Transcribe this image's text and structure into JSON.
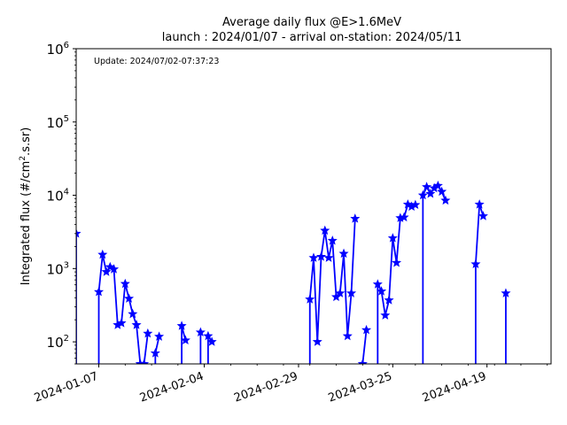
{
  "chart_data": {
    "type": "line",
    "title": "Average daily flux @E>1.6MeV",
    "subtitle": "launch : 2024/01/07 - arrival on-station: 2024/05/11",
    "annotation": "Update: 2024/07/02-07:37:23",
    "xlabel": "",
    "ylabel_main": "Integrated flux (#/cm",
    "ylabel_sup": "2",
    "ylabel_tail": ".s.sr)",
    "x_tick_labels": [
      "2024-01-07",
      "2024-02-04",
      "2024-02-29",
      "2024-03-25",
      "2024-04-19"
    ],
    "y_tick_exponents": [
      "2",
      "3",
      "4",
      "5",
      "6"
    ],
    "y_scale": "log",
    "ylim": [
      50,
      1000000
    ],
    "xlim_days": [
      0,
      126
    ],
    "grid": false,
    "legend": "none",
    "colors": {
      "series": "#0000ff",
      "axes": "#000000",
      "background": "#ffffff"
    },
    "marker": "star",
    "series": [
      {
        "points": [
          [
            "2024-01-01",
            3000
          ],
          [
            "2024-01-07",
            480
          ],
          [
            "2024-01-08",
            1550
          ],
          [
            "2024-01-09",
            900
          ],
          [
            "2024-01-10",
            1050
          ],
          [
            "2024-01-11",
            980
          ],
          [
            "2024-01-12",
            170
          ],
          [
            "2024-01-13",
            180
          ],
          [
            "2024-01-14",
            620
          ],
          [
            "2024-01-15",
            390
          ],
          [
            "2024-01-16",
            240
          ],
          [
            "2024-01-17",
            170
          ],
          [
            "2024-01-18",
            50
          ],
          [
            "2024-01-19",
            50
          ],
          [
            "2024-01-20",
            130
          ],
          [
            "2024-01-22",
            70
          ],
          [
            "2024-01-23",
            118
          ],
          [
            "2024-01-29",
            165
          ],
          [
            "2024-01-30",
            105
          ],
          [
            "2024-02-03",
            135
          ],
          [
            "2024-02-05",
            120
          ],
          [
            "2024-02-06",
            100
          ],
          [
            "2024-03-03",
            380
          ],
          [
            "2024-03-04",
            1400
          ],
          [
            "2024-03-05",
            100
          ],
          [
            "2024-03-06",
            1450
          ],
          [
            "2024-03-07",
            3300
          ],
          [
            "2024-03-08",
            1400
          ],
          [
            "2024-03-09",
            2400
          ],
          [
            "2024-03-10",
            410
          ],
          [
            "2024-03-11",
            460
          ],
          [
            "2024-03-12",
            1600
          ],
          [
            "2024-03-13",
            120
          ],
          [
            "2024-03-14",
            460
          ],
          [
            "2024-03-15",
            4800
          ],
          [
            "2024-03-17",
            50
          ],
          [
            "2024-03-18",
            145
          ],
          [
            "2024-03-21",
            610
          ],
          [
            "2024-03-22",
            490
          ],
          [
            "2024-03-23",
            230
          ],
          [
            "2024-03-24",
            370
          ],
          [
            "2024-03-25",
            2600
          ],
          [
            "2024-03-26",
            1200
          ],
          [
            "2024-03-27",
            4900
          ],
          [
            "2024-03-28",
            5000
          ],
          [
            "2024-03-29",
            7500
          ],
          [
            "2024-03-30",
            7000
          ],
          [
            "2024-03-31",
            7400
          ],
          [
            "2024-04-02",
            10000
          ],
          [
            "2024-04-03",
            13000
          ],
          [
            "2024-04-04",
            10500
          ],
          [
            "2024-04-05",
            12500
          ],
          [
            "2024-04-06",
            13500
          ],
          [
            "2024-04-07",
            11200
          ],
          [
            "2024-04-08",
            8500
          ],
          [
            "2024-04-16",
            1150
          ],
          [
            "2024-04-17",
            7500
          ],
          [
            "2024-04-18",
            5200
          ],
          [
            "2024-04-24",
            460
          ]
        ]
      }
    ]
  }
}
